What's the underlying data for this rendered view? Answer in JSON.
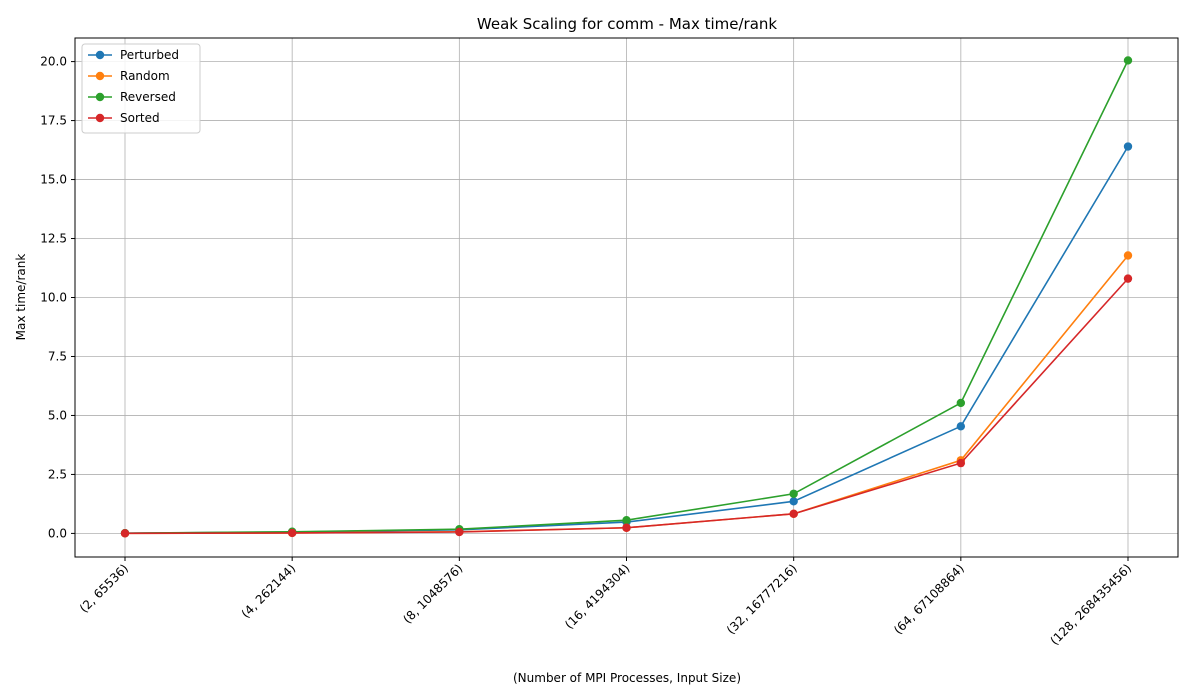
{
  "chart_data": {
    "type": "line",
    "title": "Weak Scaling for comm - Max time/rank",
    "xlabel": "(Number of MPI Processes, Input Size)",
    "ylabel": "Max time/rank",
    "categories": [
      "(2, 65536)",
      "(4, 262144)",
      "(8, 1048576)",
      "(16, 4194304)",
      "(32, 16777216)",
      "(64, 67108864)",
      "(128, 268435456)"
    ],
    "ylim": [
      -1.0,
      21.0
    ],
    "yticks": [
      0.0,
      2.5,
      5.0,
      7.5,
      10.0,
      12.5,
      15.0,
      17.5,
      20.0
    ],
    "ytick_labels": [
      "0.0",
      "2.5",
      "5.0",
      "7.5",
      "10.0",
      "12.5",
      "15.0",
      "17.5",
      "20.0"
    ],
    "grid": true,
    "legend_position": "top-left",
    "series": [
      {
        "name": "Perturbed",
        "color": "#1f77b4",
        "values": [
          0.01,
          0.06,
          0.15,
          0.48,
          1.36,
          4.54,
          16.4
        ]
      },
      {
        "name": "Random",
        "color": "#ff7f0e",
        "values": [
          0.005,
          0.02,
          0.07,
          0.24,
          0.83,
          3.1,
          11.78
        ]
      },
      {
        "name": "Reversed",
        "color": "#2ca02c",
        "values": [
          0.01,
          0.07,
          0.18,
          0.56,
          1.68,
          5.53,
          20.05
        ]
      },
      {
        "name": "Sorted",
        "color": "#d62728",
        "values": [
          0.005,
          0.02,
          0.06,
          0.24,
          0.83,
          2.98,
          10.8
        ]
      }
    ]
  }
}
